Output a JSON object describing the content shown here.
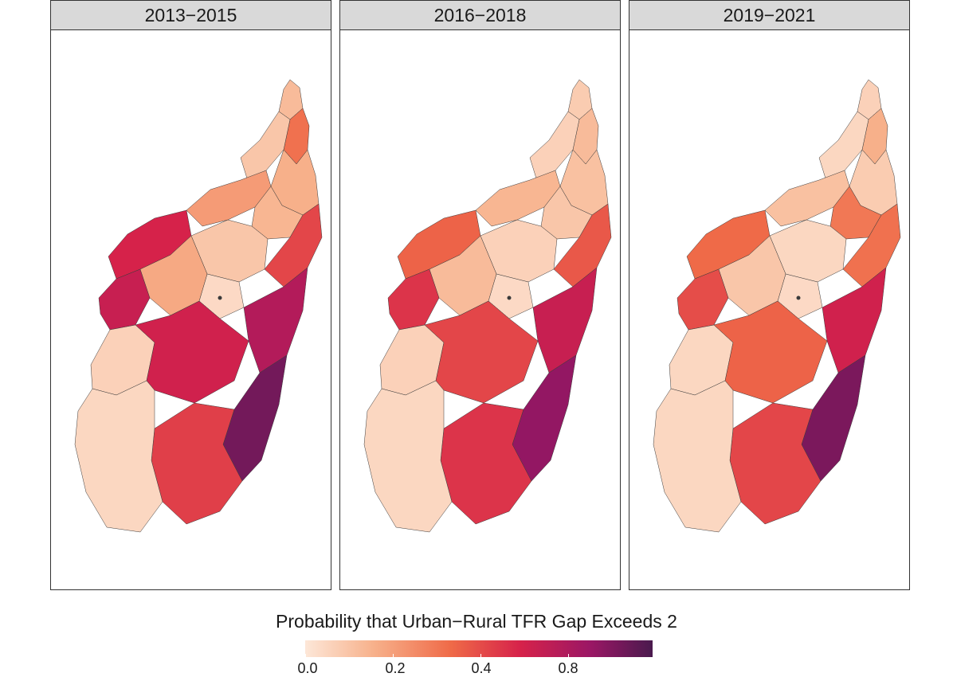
{
  "map": {
    "subject": "Madagascar",
    "panels": [
      {
        "label": "2013−2015",
        "regions": {
          "north_tip": 0.16,
          "north_east": 0.38,
          "north_west": 0.12,
          "north_center": 0.2,
          "mid_north": 0.26,
          "center_north": 0.18,
          "west_upper": 0.6,
          "west_lower": 0.65,
          "center": 0.12,
          "capital": 0.05,
          "central_highlands": 0.22,
          "east_upper": 0.5,
          "east_lower": 0.72,
          "south_west": 0.08,
          "south_center": 0.62,
          "south_east": 0.9,
          "south_tip": 0.52,
          "far_south": 0.06
        }
      },
      {
        "label": "2016−2018",
        "regions": {
          "north_tip": 0.1,
          "north_east": 0.16,
          "north_west": 0.08,
          "north_center": 0.14,
          "mid_north": 0.18,
          "center_north": 0.12,
          "west_upper": 0.42,
          "west_lower": 0.55,
          "center": 0.08,
          "capital": 0.05,
          "central_highlands": 0.16,
          "east_upper": 0.45,
          "east_lower": 0.65,
          "south_west": 0.08,
          "south_center": 0.5,
          "south_east": 0.82,
          "south_tip": 0.55,
          "far_south": 0.06
        }
      },
      {
        "label": "2019−2021",
        "regions": {
          "north_tip": 0.08,
          "north_east": 0.2,
          "north_west": 0.06,
          "north_center": 0.1,
          "mid_north": 0.14,
          "center_north": 0.36,
          "west_upper": 0.4,
          "west_lower": 0.48,
          "center": 0.06,
          "capital": 0.05,
          "central_highlands": 0.12,
          "east_upper": 0.38,
          "east_lower": 0.62,
          "south_west": 0.06,
          "south_center": 0.42,
          "south_east": 0.88,
          "south_tip": 0.5,
          "far_south": 0.06
        }
      }
    ]
  },
  "legend": {
    "title": "Probability that Urban−Rural TFR Gap Exceeds 2",
    "ticks": [
      {
        "label": "0.0",
        "value": 0.0
      },
      {
        "label": "0.2",
        "value": 0.2
      },
      {
        "label": "0.4",
        "value": 0.4
      },
      {
        "label": "0.8",
        "value": 0.8
      }
    ],
    "colors": [
      "#fde7d8",
      "#f7b08a",
      "#ef6a48",
      "#d6224a",
      "#9b1765",
      "#4a1a4e"
    ]
  }
}
